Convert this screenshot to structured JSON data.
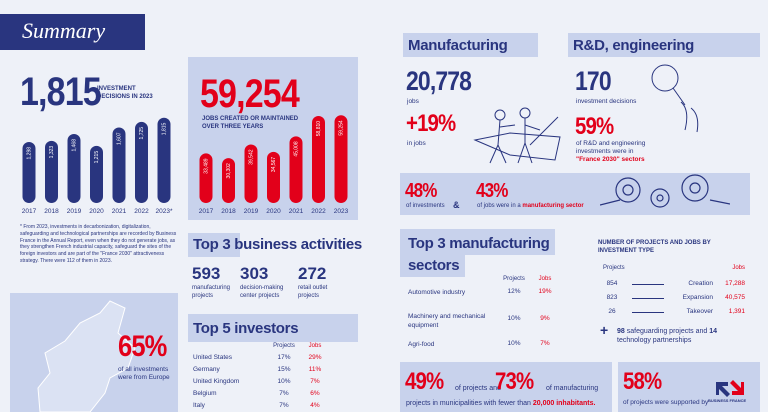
{
  "header": {
    "title": "Summary"
  },
  "investment_decisions": {
    "value": "1,815",
    "label": "INVESTMENT DECISIONS IN 2023",
    "chart": {
      "categories": [
        "2017",
        "2018",
        "2019",
        "2020",
        "2021",
        "2022",
        "2023*"
      ],
      "values": [
        1298,
        1323,
        1468,
        1215,
        1607,
        1725,
        1815
      ],
      "value_labels": [
        "1,298",
        "1,323",
        "1,468",
        "1,215",
        "1,607",
        "1,725",
        "1,815"
      ],
      "color": "#29357f"
    },
    "footnote": "* From 2023, investments in decarbonization, digitalization, safeguarding and technological partnerships are recorded by Business France in the Annual Report, even when they do not generate jobs, as they strengthen French industrial capacity, safeguard the sites of the foreign investors and are part of the \"France 2030\" attractiveness strategy. There were 112 of them in 2023."
  },
  "europe": {
    "value": "65%",
    "label": "of all investments were from Europe"
  },
  "jobs": {
    "value": "59,254",
    "label": "JOBS CREATED OR MAINTAINED OVER THREE YEARS",
    "chart": {
      "categories": [
        "2017",
        "2018",
        "2019",
        "2020",
        "2021",
        "2022",
        "2023"
      ],
      "values": [
        33489,
        30302,
        39542,
        34567,
        45008,
        58810,
        59254
      ],
      "value_labels": [
        "33,489",
        "30,302",
        "39,542",
        "34,567",
        "45,008",
        "58,810",
        "59,254"
      ],
      "color": "#e2001a"
    }
  },
  "business_activities": {
    "title_highlight": "Top 3",
    "title_rest": "business activities",
    "items": [
      {
        "value": "593",
        "label": "manufacturing projects"
      },
      {
        "value": "303",
        "label": "decision-making center projects"
      },
      {
        "value": "272",
        "label": "retail outlet projects"
      }
    ]
  },
  "investors": {
    "title": "Top 5 investors",
    "columns": [
      "Projects",
      "Jobs"
    ],
    "rows": [
      [
        "United States",
        "17%",
        "29%"
      ],
      [
        "Germany",
        "15%",
        "11%"
      ],
      [
        "United Kingdom",
        "10%",
        "7%"
      ],
      [
        "Belgium",
        "7%",
        "6%"
      ],
      [
        "Italy",
        "7%",
        "4%"
      ]
    ]
  },
  "manufacturing": {
    "title": "Manufacturing",
    "jobs": "20,778",
    "jobs_label": "jobs",
    "growth": "+19%",
    "growth_label": "in jobs"
  },
  "rnd": {
    "title": "R&D, engineering",
    "decisions": "170",
    "decisions_label": "investment decisions",
    "share": "59%",
    "share_label": "of R&D and engineering investments were in",
    "share_label_emphasis": "\"France 2030\" sectors"
  },
  "manufacturing_share": {
    "investments_value": "48%",
    "investments_label": "of investments",
    "joiner": "&",
    "jobs_value": "43%",
    "jobs_label": "of jobs were in a",
    "jobs_label_emphasis": "manufacturing sector"
  },
  "sectors": {
    "title": "Top 3 manufacturing sectors",
    "columns": [
      "Projects",
      "Jobs"
    ],
    "rows": [
      [
        "Automotive industry",
        "12%",
        "19%"
      ],
      [
        "Machinery and mechanical equipment",
        "10%",
        "9%"
      ],
      [
        "Agri-food",
        "10%",
        "7%"
      ]
    ]
  },
  "investment_type": {
    "title": "NUMBER OF PROJECTS AND JOBS BY INVESTMENT TYPE",
    "columns": [
      "Projects",
      "Jobs"
    ],
    "rows": [
      [
        "854",
        "Creation",
        "17,288"
      ],
      [
        "823",
        "Expansion",
        "40,575"
      ],
      [
        "26",
        "Takeover",
        "1,391"
      ]
    ],
    "plus": "+",
    "safeguarding_value": "98",
    "safeguarding_label": "safeguarding projects and",
    "partnerships_value": "14",
    "partnerships_label": "technology partnerships"
  },
  "municipalities": {
    "projects_value": "49%",
    "projects_label": "of projects and",
    "manufacturing_value": "73%",
    "manufacturing_label": "of manufacturing",
    "tail": "projects in municipalities with fewer than",
    "tail_emphasis": "20,000 inhabitants."
  },
  "support": {
    "value": "58%",
    "label": "of projects were supported by",
    "logo_text": "BUSINESS FRANCE"
  }
}
